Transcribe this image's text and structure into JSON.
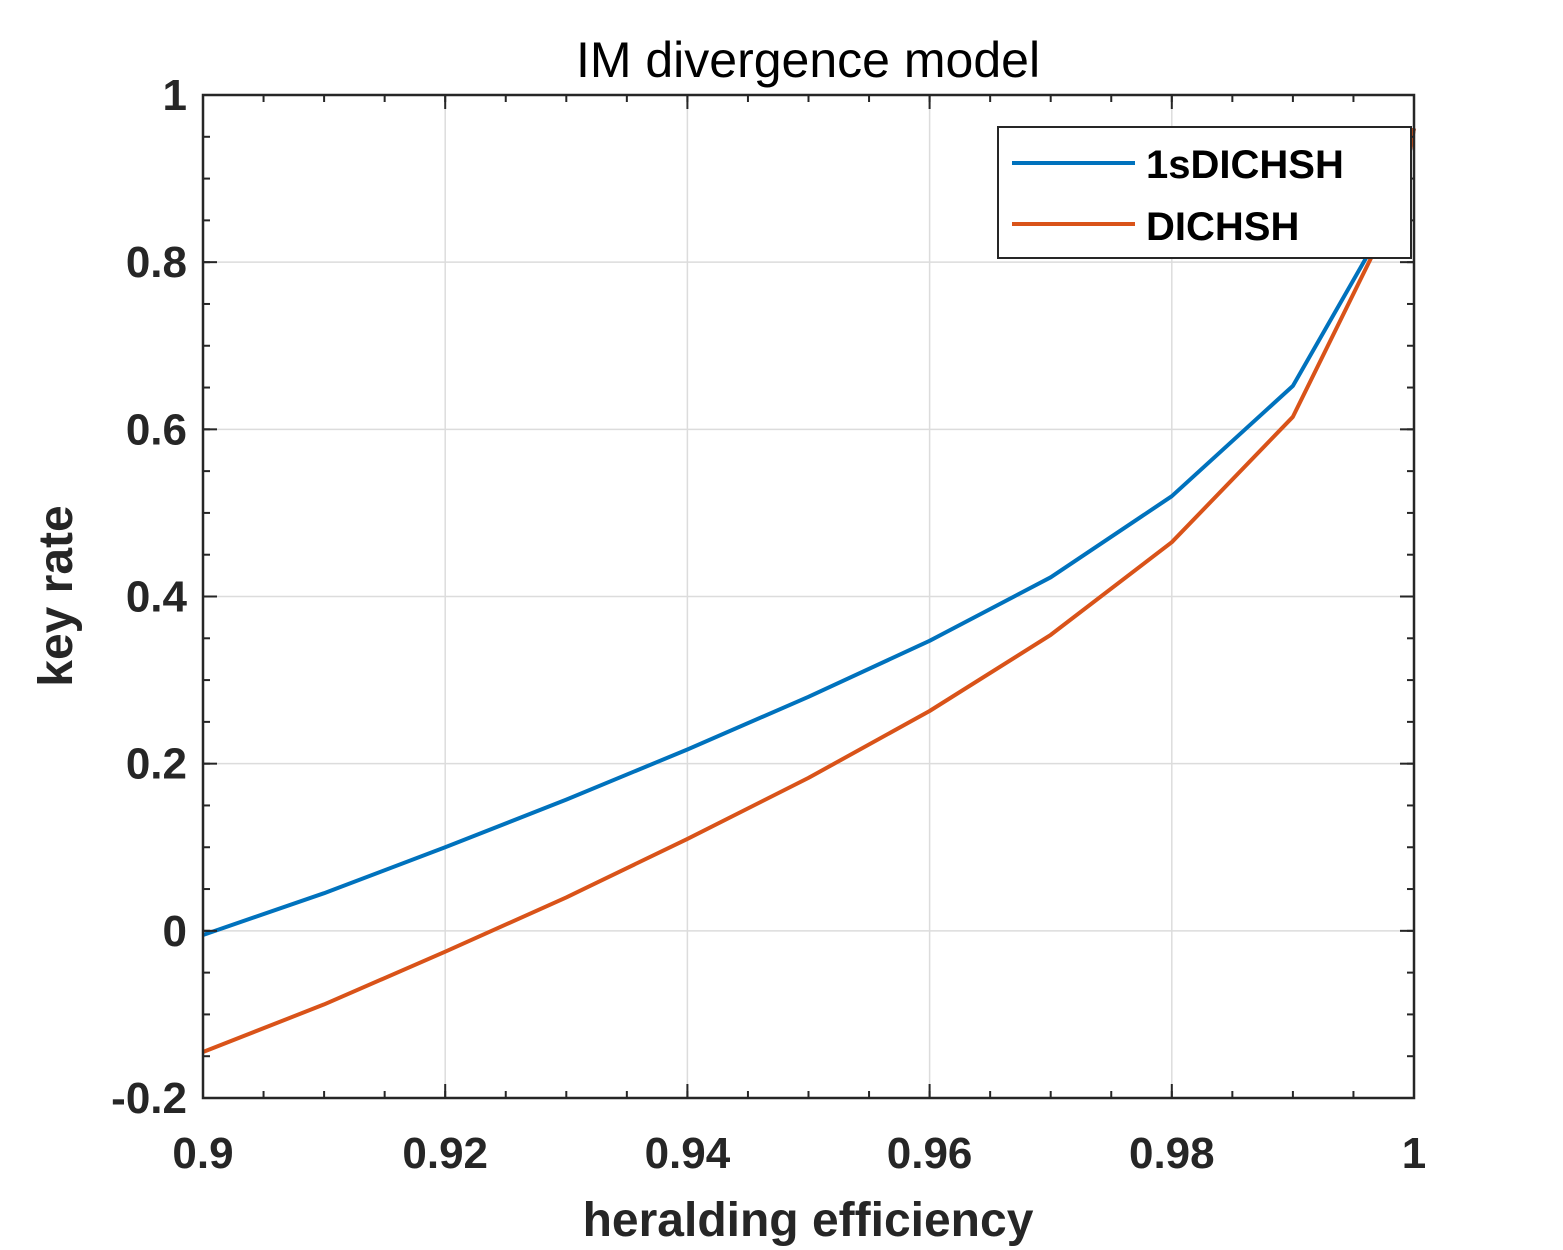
{
  "chart_data": {
    "type": "line",
    "title": "IM divergence model",
    "xlabel": "heralding efficiency",
    "ylabel": "key rate",
    "xlim": [
      0.9,
      1
    ],
    "ylim": [
      -0.2,
      1
    ],
    "xticks": [
      0.9,
      0.92,
      0.94,
      0.96,
      0.98,
      1
    ],
    "xtick_labels": [
      "0.9",
      "0.92",
      "0.94",
      "0.96",
      "0.98",
      "1"
    ],
    "yticks": [
      -0.2,
      0,
      0.2,
      0.4,
      0.6,
      0.8,
      1
    ],
    "ytick_labels": [
      "-0.2",
      "0",
      "0.2",
      "0.4",
      "0.6",
      "0.8",
      "1"
    ],
    "grid": true,
    "legend_position": "top-right",
    "x": [
      0.9,
      0.91,
      0.92,
      0.93,
      0.94,
      0.95,
      0.96,
      0.97,
      0.98,
      0.99,
      0.999,
      1.0
    ],
    "series": [
      {
        "name": "1sDICHSH",
        "color": "#0072BD",
        "values": [
          -0.005,
          0.045,
          0.1,
          0.157,
          0.217,
          0.28,
          0.347,
          0.423,
          0.52,
          0.652,
          0.88,
          0.96
        ]
      },
      {
        "name": "DICHSH",
        "color": "#D95319",
        "values": [
          -0.145,
          -0.088,
          -0.025,
          0.04,
          0.11,
          0.183,
          0.263,
          0.354,
          0.465,
          0.615,
          0.88,
          0.96
        ]
      }
    ]
  }
}
